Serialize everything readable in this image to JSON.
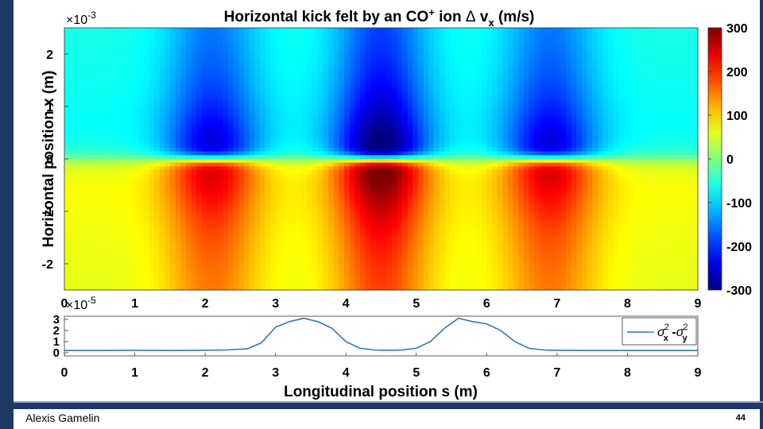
{
  "slide": {
    "author": "Alexis Gamelin",
    "page_number": "44"
  },
  "chart_data": [
    {
      "type": "heatmap",
      "title_main": "Horizontal kick felt by an CO",
      "title_sup": "+",
      "title_rest": " ion ",
      "title_delta": "Δ",
      "title_v": " v",
      "title_sub": "x",
      "title_unit": " (m/s)",
      "ylabel": "Horizontal position x (m)",
      "y_multiplier_base": "×10",
      "y_multiplier_exp": "-3",
      "x_range": [
        0,
        9
      ],
      "y_range": [
        -2.5,
        2.5
      ],
      "x_ticks": [
        "0",
        "1",
        "2",
        "3",
        "4",
        "5",
        "6",
        "7",
        "8",
        "9"
      ],
      "y_ticks": [
        {
          "value": 2,
          "label": "2"
        },
        {
          "value": 1,
          "label": "1"
        },
        {
          "value": 0,
          "label": "0"
        },
        {
          "value": -1,
          "label": "-1"
        },
        {
          "value": -2,
          "label": "-2"
        }
      ],
      "colorbar": {
        "range": [
          -300,
          300
        ],
        "ticks": [
          {
            "value": 300,
            "label": "300"
          },
          {
            "value": 200,
            "label": "200"
          },
          {
            "value": 100,
            "label": "100"
          },
          {
            "value": 0,
            "label": "0"
          },
          {
            "value": -100,
            "label": "-100"
          },
          {
            "value": -200,
            "label": "-200"
          },
          {
            "value": -300,
            "label": "-300"
          }
        ]
      },
      "features": [
        {
          "s_center": 2.1,
          "amplitude": 220,
          "width_m": 0.55
        },
        {
          "s_center": 4.5,
          "amplitude": 300,
          "width_m": 0.55
        },
        {
          "s_center": 6.9,
          "amplitude": 220,
          "width_m": 0.55
        }
      ],
      "background_kick_far_x": -60
    },
    {
      "type": "line",
      "xlabel": "Longitudinal position s (m)",
      "y_multiplier_base": "×10",
      "y_multiplier_exp": "-5",
      "x_range": [
        0,
        9
      ],
      "y_range": [
        0,
        3
      ],
      "x_ticks": [
        "0",
        "1",
        "2",
        "3",
        "4",
        "5",
        "6",
        "7",
        "8",
        "9"
      ],
      "y_ticks": [
        {
          "value": 3,
          "label": "3"
        },
        {
          "value": 2,
          "label": "2"
        },
        {
          "value": 1,
          "label": "1"
        },
        {
          "value": 0,
          "label": "0"
        }
      ],
      "legend": {
        "placement": "right",
        "sigma": "σ",
        "sub_x": "x",
        "sub_y": "y",
        "sup": "2",
        "minus": " -"
      },
      "series": [
        {
          "x": [
            0,
            0.5,
            1,
            1.5,
            2,
            2.3,
            2.6,
            2.8,
            3.0,
            3.2,
            3.4,
            3.6,
            3.8,
            4.0,
            4.2,
            4.4,
            4.6,
            4.8,
            5.0,
            5.2,
            5.4,
            5.6,
            5.8,
            6.0,
            6.2,
            6.4,
            6.6,
            6.8,
            7.0,
            7.5,
            8,
            8.5,
            9
          ],
          "y": [
            0.2,
            0.2,
            0.22,
            0.2,
            0.22,
            0.25,
            0.35,
            0.9,
            2.3,
            2.8,
            3.1,
            2.8,
            2.2,
            1.0,
            0.4,
            0.25,
            0.22,
            0.25,
            0.4,
            1.0,
            2.2,
            3.1,
            2.8,
            2.6,
            2.0,
            1.0,
            0.4,
            0.25,
            0.22,
            0.2,
            0.2,
            0.2,
            0.2
          ]
        }
      ]
    }
  ]
}
